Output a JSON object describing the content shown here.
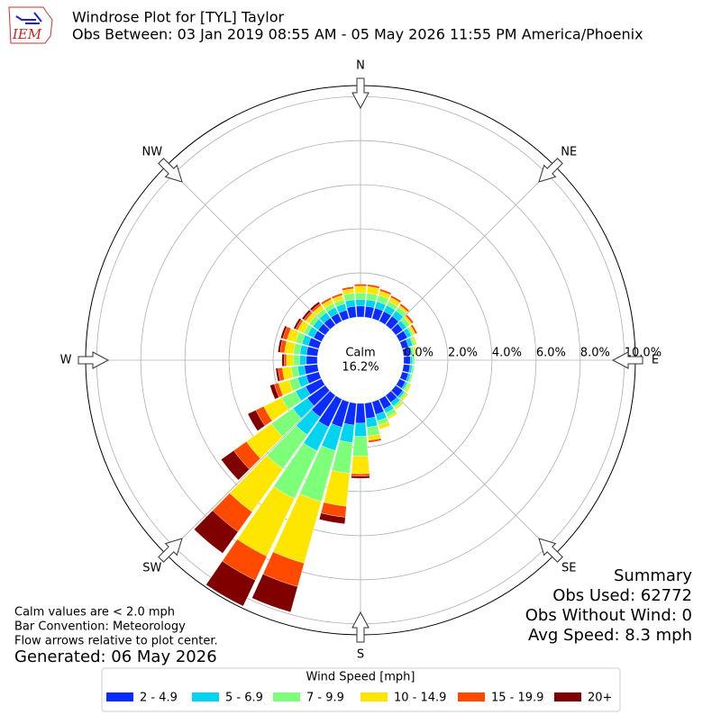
{
  "chart_data": {
    "type": "windrose",
    "title": "Windrose Plot for [TYL] Taylor",
    "subtitle": "Obs Between: 03 Jan 2019 08:55 AM - 05 May 2026 11:55 PM America/Phoenix",
    "logo_text": "IEM",
    "direction_labels": [
      "N",
      "NE",
      "E",
      "SE",
      "S",
      "SW",
      "W",
      "NW"
    ],
    "rlim": [
      0,
      10.5
    ],
    "rticks": [
      {
        "value": 0,
        "label": "0.0%"
      },
      {
        "value": 2,
        "label": "2.0%"
      },
      {
        "value": 4,
        "label": "4.0%"
      },
      {
        "value": 6,
        "label": "6.0%"
      },
      {
        "value": 8,
        "label": "8.0%"
      },
      {
        "value": 10,
        "label": "10.0%"
      }
    ],
    "grid": true,
    "calm_label": "Calm",
    "calm_text": "16.2%",
    "legend_title": "Wind Speed [mph]",
    "series": [
      {
        "name": "2 - 4.9",
        "color": "#0a2cff",
        "values": [
          0.5,
          0.5,
          0.5,
          0.5,
          0.5,
          0.4,
          0.4,
          0.3,
          0.3,
          0.3,
          0.3,
          0.3,
          0.3,
          0.4,
          0.4,
          0.5,
          0.6,
          0.7,
          0.9,
          1.0,
          1.2,
          1.4,
          1.2,
          1.0,
          0.8,
          0.6,
          0.6,
          0.5,
          0.5,
          0.5,
          0.4,
          0.4,
          0.4,
          0.4,
          0.4,
          0.5
        ]
      },
      {
        "name": "5 - 6.9",
        "color": "#00d4f0",
        "values": [
          0.3,
          0.3,
          0.3,
          0.3,
          0.3,
          0.2,
          0.2,
          0.2,
          0.1,
          0.1,
          0.1,
          0.1,
          0.1,
          0.1,
          0.2,
          0.2,
          0.3,
          0.4,
          0.6,
          0.8,
          1.1,
          1.2,
          1.0,
          0.8,
          0.5,
          0.4,
          0.3,
          0.3,
          0.3,
          0.3,
          0.3,
          0.3,
          0.3,
          0.3,
          0.3,
          0.3
        ]
      },
      {
        "name": "7 - 9.9",
        "color": "#7dff7a",
        "values": [
          0.3,
          0.3,
          0.3,
          0.2,
          0.2,
          0.2,
          0.1,
          0.1,
          0.1,
          0.1,
          0.1,
          0.1,
          0.1,
          0.1,
          0.1,
          0.2,
          0.2,
          0.4,
          0.9,
          1.4,
          2.4,
          2.4,
          1.9,
          1.2,
          0.7,
          0.4,
          0.3,
          0.3,
          0.3,
          0.3,
          0.2,
          0.2,
          0.2,
          0.2,
          0.2,
          0.3
        ]
      },
      {
        "name": "10 - 14.9",
        "color": "#ffe600",
        "values": [
          0.3,
          0.3,
          0.2,
          0.2,
          0.1,
          0.1,
          0.1,
          0.1,
          0.1,
          0,
          0,
          0,
          0.1,
          0.1,
          0.1,
          0.1,
          0.2,
          0.2,
          0.8,
          1.5,
          2.9,
          2.9,
          2.4,
          1.4,
          0.9,
          0.5,
          0.4,
          0.3,
          0.4,
          0.4,
          0.3,
          0.2,
          0.2,
          0.2,
          0.2,
          0.2
        ]
      },
      {
        "name": "15 - 19.9",
        "color": "#ff4a00",
        "values": [
          0.1,
          0.1,
          0.1,
          0.1,
          0.1,
          0.1,
          0.1,
          0,
          0,
          0,
          0,
          0,
          0,
          0,
          0,
          0,
          0,
          0.1,
          0.1,
          0.5,
          1.1,
          1.2,
          1.1,
          0.7,
          0.4,
          0.2,
          0.2,
          0.1,
          0.2,
          0.2,
          0.1,
          0.1,
          0.1,
          0.1,
          0.1,
          0.1
        ]
      },
      {
        "name": "20+",
        "color": "#800000",
        "values": [
          0,
          0,
          0,
          0,
          0,
          0,
          0,
          0,
          0,
          0,
          0,
          0,
          0,
          0,
          0,
          0,
          0,
          0,
          0.1,
          0.3,
          1.2,
          1.3,
          1.2,
          0.7,
          0.4,
          0.2,
          0.1,
          0.1,
          0.1,
          0.1,
          0.1,
          0.1,
          0.1,
          0,
          0,
          0
        ]
      }
    ],
    "notes": [
      "Calm values are < 2.0 mph",
      "Bar Convention: Meteorology",
      "Flow arrows relative to plot center."
    ],
    "generated": "Generated: 06 May 2026",
    "summary": [
      "Summary",
      "Obs Used: 62772",
      "Obs Without Wind: 0",
      "Avg Speed: 8.3 mph"
    ]
  }
}
